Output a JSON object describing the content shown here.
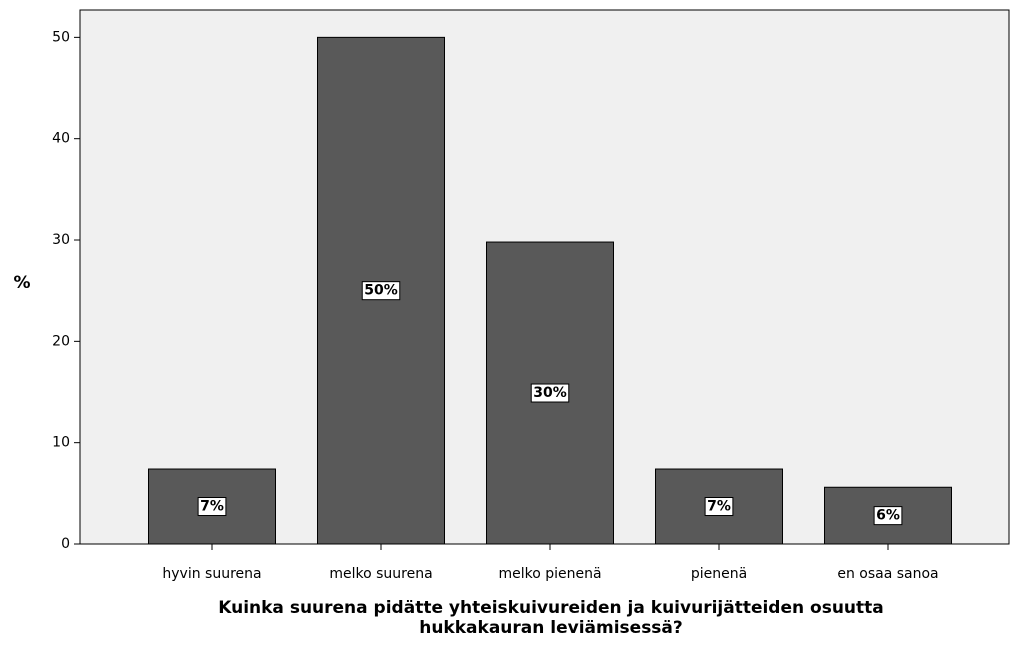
{
  "chart_data": {
    "type": "bar",
    "ylabel": "%",
    "xlabel": [
      "Kuinka suurena pidätte yhteiskuivureiden ja kuivurijätteiden osuutta",
      "hukkakauran leviämisessä?"
    ],
    "categories": [
      "hyvin suurena",
      "melko suurena",
      "melko pienenä",
      "pienenä",
      "en osaa sanoa"
    ],
    "values": [
      7.4,
      50,
      29.8,
      7.4,
      5.6
    ],
    "value_labels": [
      "7%",
      "50%",
      "30%",
      "7%",
      "6%"
    ],
    "color": "#595959",
    "ylim": [
      0,
      52.7
    ],
    "yticks": [
      0,
      10,
      20,
      30,
      40,
      50
    ]
  }
}
